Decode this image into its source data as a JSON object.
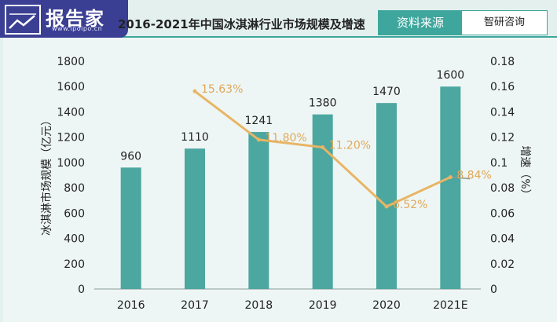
{
  "header": {
    "logo_name": "报告家",
    "logo_url": "www.ipoipo.cn",
    "title": "2016-2021年中国冰淇淋行业市场规模及增速",
    "source_label": "资料来源",
    "source_value": "智研咨询"
  },
  "colors": {
    "bar": "#4ba79f",
    "line": "#e8b565",
    "line_label": "#e0a85a",
    "accent": "#3ea69c",
    "logo_bg": "#3b3f93"
  },
  "chart_data": {
    "type": "bar",
    "categories": [
      "2016",
      "2017",
      "2018",
      "2019",
      "2020",
      "2021E"
    ],
    "series": [
      {
        "values": [
          960,
          1110,
          1241,
          1380,
          1470,
          1600
        ],
        "labels": [
          "960",
          "1110",
          "1241",
          "1380",
          "1470",
          "1600"
        ],
        "axis": "left",
        "type": "bar"
      },
      {
        "values": [
          null,
          0.1563,
          0.118,
          0.112,
          0.0652,
          0.0884
        ],
        "labels": [
          "",
          "15.63%",
          "11.80%",
          "11.20%",
          "6.52%",
          "8.84%"
        ],
        "axis": "right",
        "type": "line"
      }
    ],
    "ylabel": "冰淇淋市场规模（亿元）",
    "y2label": "增速（%）",
    "ylim": [
      0,
      1800
    ],
    "y2lim": [
      0,
      0.18
    ],
    "yticks": [
      "0",
      "200",
      "400",
      "600",
      "800",
      "1000",
      "1200",
      "1400",
      "1600",
      "1800"
    ],
    "y2ticks": [
      "0",
      "0.02",
      "0.04",
      "0.06",
      "0.08",
      "0.1",
      "0.12",
      "0.14",
      "0.16",
      "0.18"
    ],
    "grid": false,
    "legend": "none"
  }
}
